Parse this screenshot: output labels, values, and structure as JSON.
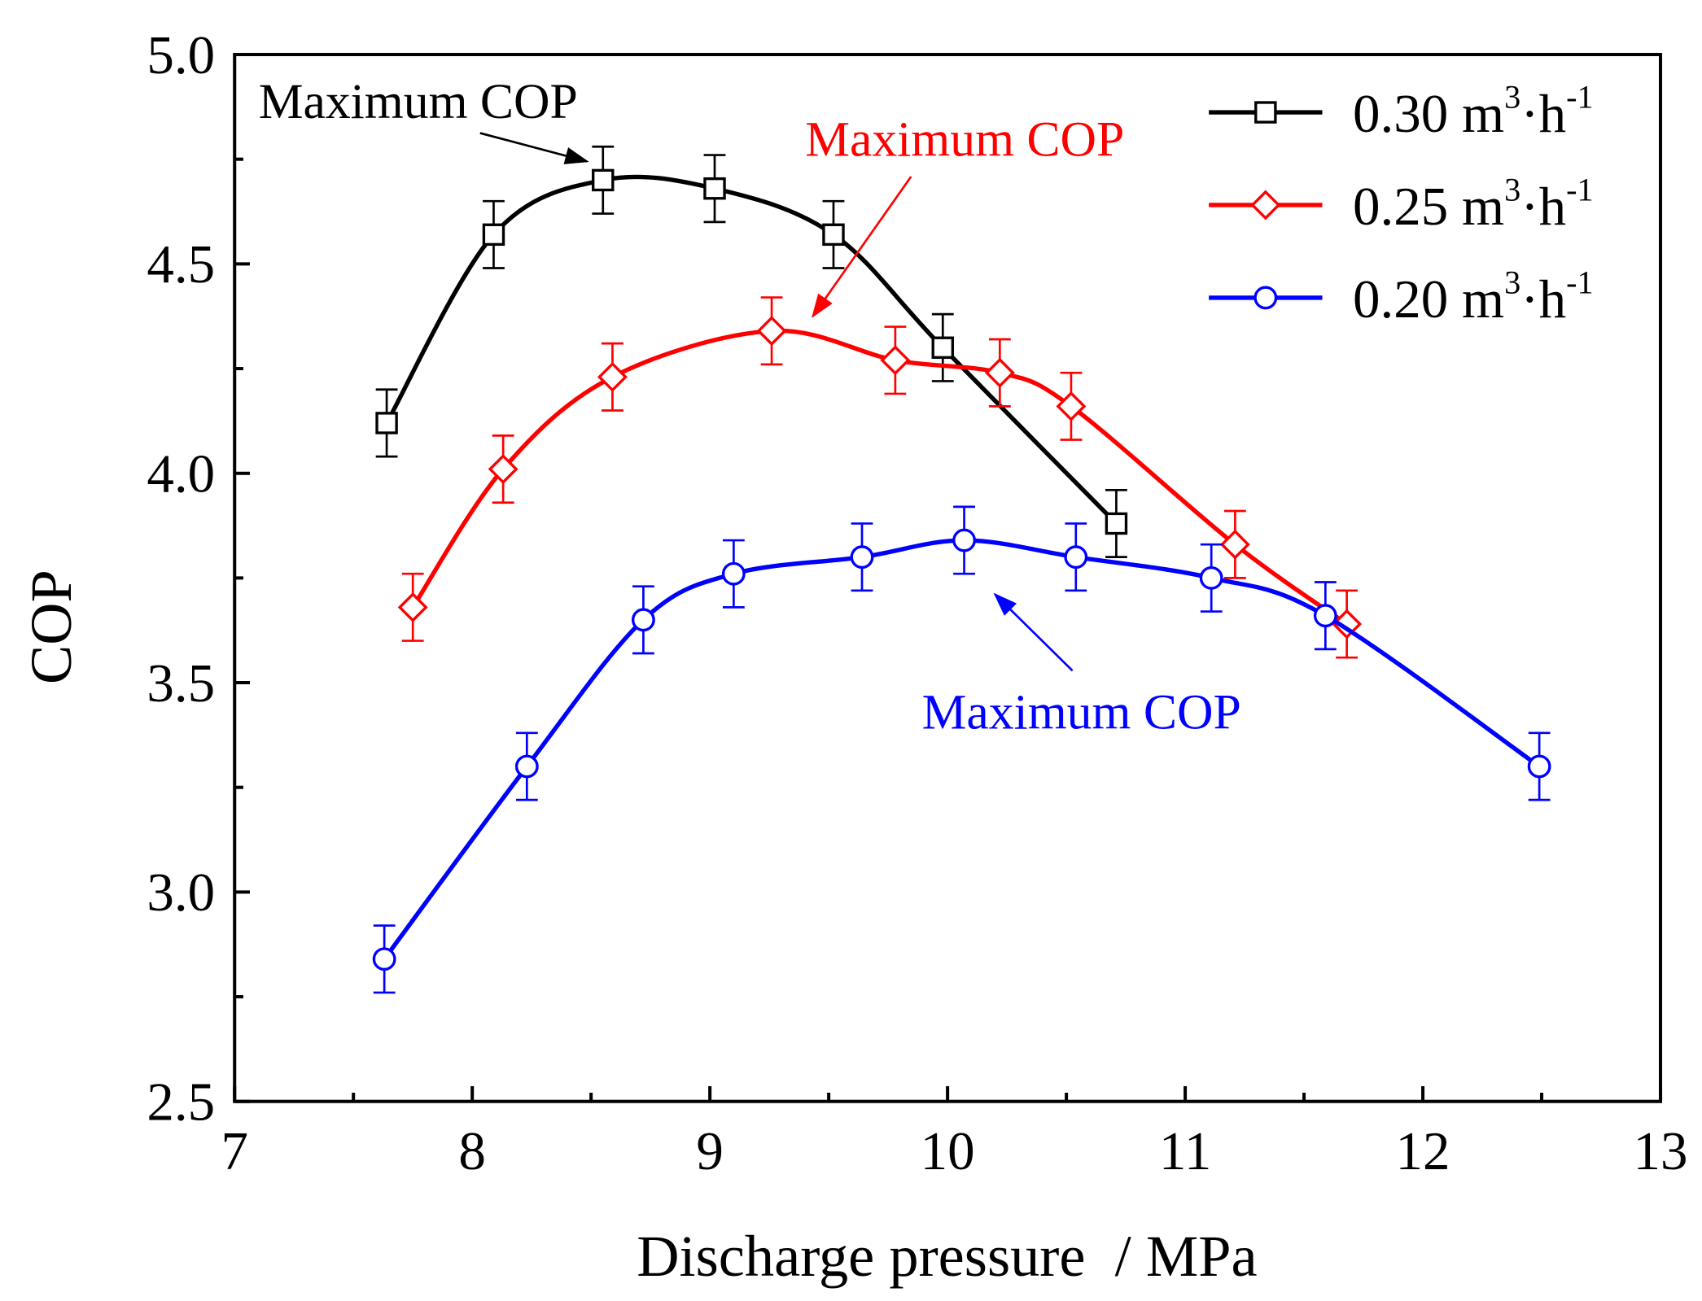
{
  "chart_data": {
    "type": "line",
    "title": "",
    "xlabel": "Discharge pressure  / MPa",
    "ylabel": "COP",
    "xlim": [
      7,
      13
    ],
    "ylim": [
      2.5,
      5.0
    ],
    "xticks": [
      "7",
      "8",
      "9",
      "10",
      "11",
      "12",
      "13"
    ],
    "yticks": [
      "2.5",
      "3.0",
      "3.5",
      "4.0",
      "4.5",
      "5.0"
    ],
    "grid": false,
    "legend_position": "top-right",
    "error_bar": 0.08,
    "series": [
      {
        "name": "0.30 m3·h-1",
        "label_main": "0.30 m",
        "label_sup1": "3",
        "label_mid": "·h",
        "label_sup2": "-1",
        "color": "#000000",
        "marker": "square",
        "x": [
          7.64,
          8.09,
          8.55,
          9.02,
          9.52,
          9.98,
          10.71
        ],
        "y": [
          4.12,
          4.57,
          4.7,
          4.68,
          4.57,
          4.3,
          3.88
        ]
      },
      {
        "name": "0.25 m3·h-1",
        "label_main": "0.25 m",
        "label_sup1": "3",
        "label_mid": "·h",
        "label_sup2": "-1",
        "color": "#ff0000",
        "marker": "diamond",
        "x": [
          7.75,
          8.13,
          8.59,
          9.26,
          9.78,
          10.22,
          10.52,
          11.21,
          11.68
        ],
        "y": [
          3.68,
          4.01,
          4.23,
          4.34,
          4.27,
          4.24,
          4.16,
          3.83,
          3.64
        ]
      },
      {
        "name": "0.20 m3·h-1",
        "label_main": "0.20 m",
        "label_sup1": "3",
        "label_mid": "·h",
        "label_sup2": "-1",
        "color": "#0000ff",
        "marker": "circle",
        "x": [
          7.63,
          8.23,
          8.72,
          9.1,
          9.64,
          10.07,
          10.54,
          11.11,
          11.59,
          12.49
        ],
        "y": [
          2.84,
          3.3,
          3.65,
          3.76,
          3.8,
          3.84,
          3.8,
          3.75,
          3.66,
          3.3
        ]
      }
    ],
    "annotations": [
      {
        "text": "Maximum COP",
        "color": "#000000"
      },
      {
        "text": "Maximum COP",
        "color": "#ff0000"
      },
      {
        "text": "Maximum COP",
        "color": "#0000ff"
      }
    ]
  }
}
